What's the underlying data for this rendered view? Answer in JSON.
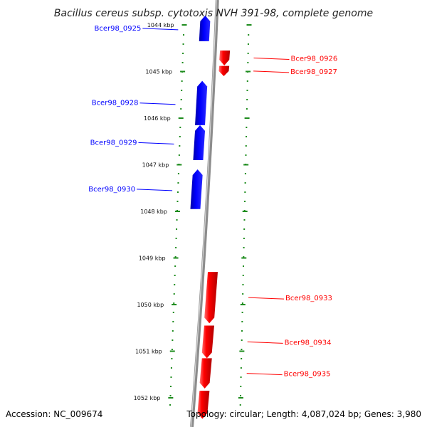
{
  "title": "Bacillus cereus subsp. cytotoxis NVH 391-98, complete genome",
  "footer": {
    "accession": "Accession: NC_009674",
    "summary": "Topology: circular; Length: 4,087,024 bp; Genes: 3,980"
  },
  "colors": {
    "backbone": "#8c8c8c",
    "ruler": "#1e8c1e",
    "forward_gene": "#0000ff",
    "reverse_gene": "#ff0000"
  },
  "chart_data": {
    "type": "genome-map",
    "topology": "circular",
    "length_bp": 4087024,
    "gene_count": 3980,
    "visible_range_kbp": [
      1043.8,
      1052.6
    ],
    "ticks": [
      {
        "kbp": 1044,
        "label": "1044 kbp"
      },
      {
        "kbp": 1045,
        "label": "1045 kbp"
      },
      {
        "kbp": 1046,
        "label": "1046 kbp"
      },
      {
        "kbp": 1047,
        "label": "1047 kbp"
      },
      {
        "kbp": 1048,
        "label": "1048 kbp"
      },
      {
        "kbp": 1049,
        "label": "1049 kbp"
      },
      {
        "kbp": 1050,
        "label": "1050 kbp"
      },
      {
        "kbp": 1051,
        "label": "1051 kbp"
      },
      {
        "kbp": 1052,
        "label": "1052 kbp"
      }
    ],
    "genes": [
      {
        "name": "Bcer98_0925",
        "strand": "forward",
        "start_kbp": 1043.8,
        "end_kbp": 1044.35
      },
      {
        "name": "Bcer98_0926",
        "strand": "reverse",
        "start_kbp": 1044.55,
        "end_kbp": 1044.87
      },
      {
        "name": "Bcer98_0927",
        "strand": "reverse",
        "start_kbp": 1044.88,
        "end_kbp": 1045.1
      },
      {
        "name": "Bcer98_0928",
        "strand": "forward",
        "start_kbp": 1045.2,
        "end_kbp": 1046.15
      },
      {
        "name": "Bcer98_0929",
        "strand": "forward",
        "start_kbp": 1046.15,
        "end_kbp": 1046.9
      },
      {
        "name": "Bcer98_0930",
        "strand": "forward",
        "start_kbp": 1047.1,
        "end_kbp": 1047.95
      },
      {
        "name": "Bcer98_0933",
        "strand": "reverse",
        "start_kbp": 1049.3,
        "end_kbp": 1050.4
      },
      {
        "name": "Bcer98_0934",
        "strand": "reverse",
        "start_kbp": 1050.45,
        "end_kbp": 1051.15
      },
      {
        "name": "Bcer98_0935",
        "strand": "reverse",
        "start_kbp": 1051.15,
        "end_kbp": 1051.8
      },
      {
        "name": "",
        "strand": "reverse",
        "start_kbp": 1051.85,
        "end_kbp": 1052.45
      }
    ]
  }
}
